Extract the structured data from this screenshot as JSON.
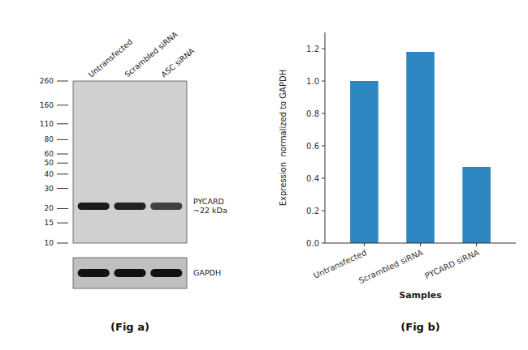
{
  "chart_data": [
    {
      "type": "blot",
      "title": "(Fig a)",
      "categories": [
        "Untransfected",
        "Scrambled siRNA",
        "ASC siRNA"
      ],
      "log": "y",
      "ylim": [
        10,
        260
      ],
      "yticks": [
        260,
        160,
        110,
        80,
        60,
        50,
        40,
        30,
        20,
        15,
        10
      ],
      "series": [
        {
          "name": "PYCARD\n~22 kDa",
          "values": [
            21,
            21,
            21
          ],
          "colors": [
            "#1a1a1a",
            "#222222",
            "#404040"
          ]
        },
        {
          "name": "GAPDH",
          "color": "#111111"
        }
      ]
    },
    {
      "type": "bar",
      "title": "(Fig b)",
      "categories": [
        "Untransfected",
        "Scrambled siRNA",
        "PYCARD siRNA"
      ],
      "values": [
        1.0,
        1.18,
        0.47
      ],
      "color": "#2E86C1",
      "xlabel": "Samples",
      "ylabel": "Expression  normalized to GAPDH",
      "ylim": [
        0,
        1.3
      ],
      "yticks": [
        {
          "value": 0,
          "label": "0.0"
        },
        0.2,
        0.4,
        0.6,
        0.8,
        {
          "value": 1.0,
          "label": "1.0"
        },
        1.2
      ]
    }
  ]
}
